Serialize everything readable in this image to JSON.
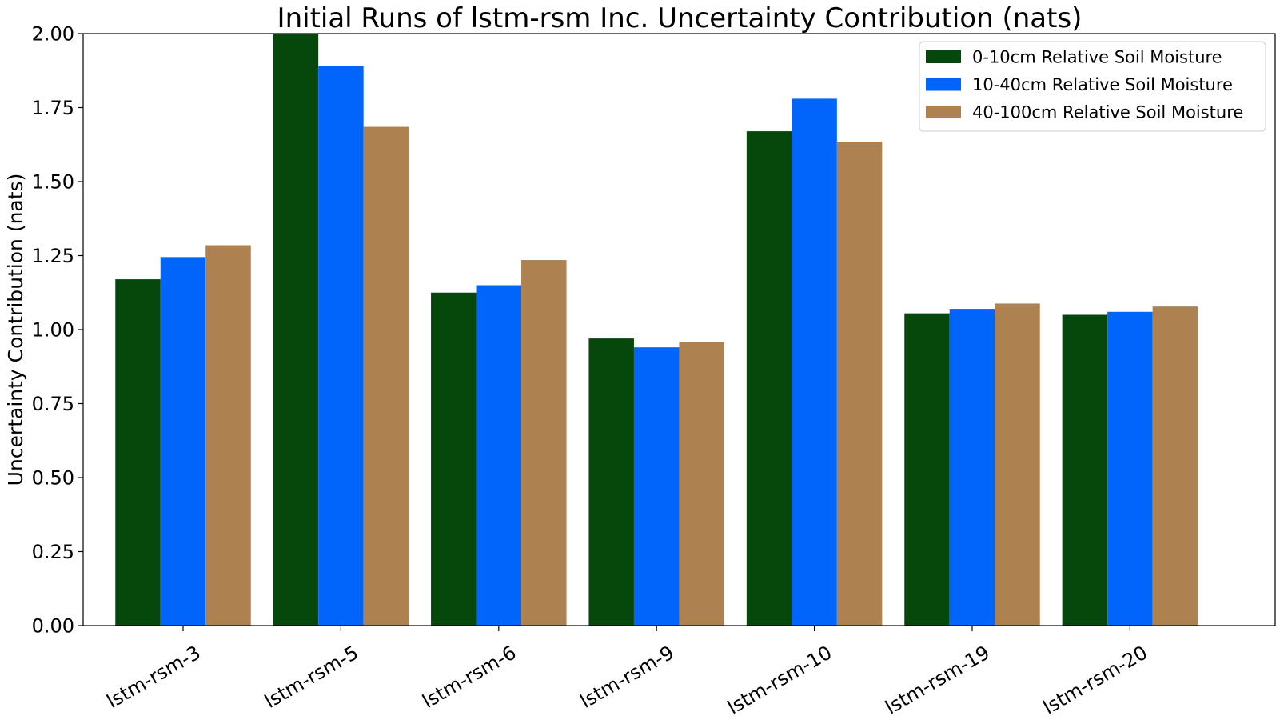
{
  "chart_data": {
    "type": "bar",
    "title": "Initial Runs of lstm-rsm Inc. Uncertainty Contribution (nats)",
    "xlabel": "",
    "ylabel": "Uncertainty Contribution (nats)",
    "ylim": [
      0,
      2.0
    ],
    "yticks": [
      "0.00",
      "0.25",
      "0.50",
      "0.75",
      "1.00",
      "1.25",
      "1.50",
      "1.75",
      "2.00"
    ],
    "categories": [
      "lstm-rsm-3",
      "lstm-rsm-5",
      "lstm-rsm-6",
      "lstm-rsm-9",
      "lstm-rsm-10",
      "lstm-rsm-19",
      "lstm-rsm-20"
    ],
    "series": [
      {
        "name": "0-10cm Relative Soil Moisture",
        "color": "#06470c",
        "values": [
          1.17,
          2.0,
          1.125,
          0.97,
          1.67,
          1.055,
          1.05
        ]
      },
      {
        "name": "10-40cm Relative Soil Moisture",
        "color": "#0165fc",
        "values": [
          1.245,
          1.89,
          1.15,
          0.94,
          1.78,
          1.07,
          1.06
        ]
      },
      {
        "name": "40-100cm Relative Soil Moisture",
        "color": "#ad8150",
        "values": [
          1.285,
          1.685,
          1.235,
          0.958,
          1.635,
          1.088,
          1.078
        ]
      }
    ],
    "grid": false,
    "legend": "top-right"
  }
}
